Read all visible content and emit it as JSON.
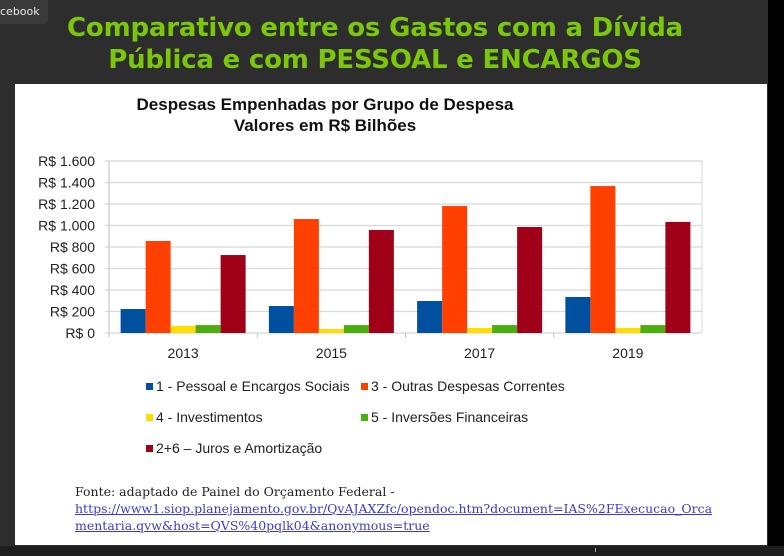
{
  "app_label": "cebook",
  "slide_title_line1": "Comparativo entre os Gastos com a Dívida",
  "slide_title_line2": "Pública e com PESSOAL e ENCARGOS",
  "source": {
    "label": "Fonte: adaptado de Painel do Orçamento Federal -",
    "link_line1": "https://www1.siop.planejamento.gov.br/QvAJAXZfc/opendoc.htm?document=IAS%2FExecucao_Orca",
    "link_line2": "mentaria.qvw&host=QVS%40pqlk04&anonymous=true"
  },
  "colors": {
    "title_green": "#7ac70c",
    "background": "#2d2d2d"
  },
  "chart_data": {
    "type": "bar",
    "title": "Despesas Empenhadas por Grupo de Despesa",
    "subtitle": "Valores em R$ Bilhões",
    "xlabel": "",
    "ylabel": "",
    "categories": [
      "2013",
      "2015",
      "2017",
      "2019"
    ],
    "ylim": [
      0,
      1600
    ],
    "yticks": [
      0,
      200,
      400,
      600,
      800,
      1000,
      1200,
      1400,
      1600
    ],
    "ytick_labels": [
      "R$ 0",
      "R$ 200",
      "R$ 400",
      "R$ 600",
      "R$ 800",
      "R$ 1.000",
      "R$ 1.200",
      "R$ 1.400",
      "R$ 1.600"
    ],
    "grid": true,
    "legend_position": "bottom",
    "series": [
      {
        "name": "1 - Pessoal e Encargos Sociais",
        "color": "#0050a0",
        "values": [
          223,
          251,
          298,
          335
        ]
      },
      {
        "name": "3 - Outras Despesas Correntes",
        "color": "#ff4000",
        "values": [
          856,
          1060,
          1181,
          1367
        ]
      },
      {
        "name": "4 - Investimentos",
        "color": "#ffdd00",
        "values": [
          65,
          37,
          47,
          47
        ]
      },
      {
        "name": "5 - Inversões Financeiras",
        "color": "#4caf10",
        "values": [
          74,
          74,
          74,
          74
        ]
      },
      {
        "name": "2+6 – Juros e Amortização",
        "color": "#a00018",
        "values": [
          725,
          958,
          986,
          1033
        ]
      }
    ]
  }
}
